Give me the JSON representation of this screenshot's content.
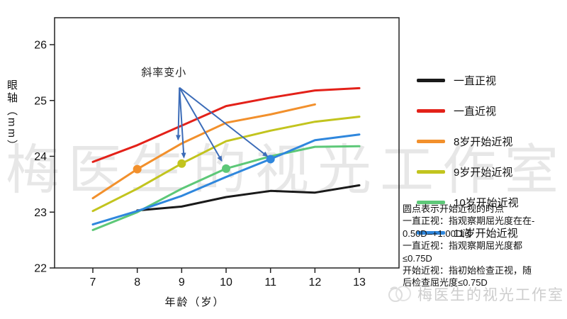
{
  "chart_data": {
    "type": "line",
    "title": "",
    "xlabel": "年龄（岁）",
    "ylabel": "眼轴（mm）",
    "x_ticks": [
      7,
      8,
      9,
      10,
      11,
      12,
      13
    ],
    "y_ticks": [
      22,
      23,
      24,
      25,
      26
    ],
    "xlim": [
      6.15,
      13.9
    ],
    "ylim": [
      22,
      26.5
    ],
    "grid": false,
    "legend_position": "right",
    "series": [
      {
        "name": "一直正视",
        "color": "#1a1a1a",
        "ages": [
          8,
          9,
          10,
          11,
          12,
          13
        ],
        "values": [
          23.03,
          23.1,
          23.27,
          23.38,
          23.35,
          23.48
        ]
      },
      {
        "name": "一直近视",
        "color": "#e32119",
        "ages": [
          7,
          8,
          9,
          10,
          11,
          12,
          13
        ],
        "values": [
          23.9,
          24.2,
          24.55,
          24.9,
          25.05,
          25.18,
          25.22
        ]
      },
      {
        "name": "8岁开始近视",
        "color": "#f2902c",
        "ages": [
          7,
          8,
          9,
          10,
          11,
          12
        ],
        "values": [
          23.25,
          23.77,
          24.23,
          24.6,
          24.75,
          24.93
        ],
        "onset_age": 8,
        "onset_value": 23.77
      },
      {
        "name": "9岁开始近视",
        "color": "#c2c41e",
        "ages": [
          7,
          8,
          9,
          10,
          11,
          12,
          13
        ],
        "values": [
          23.02,
          23.42,
          23.87,
          24.27,
          24.46,
          24.62,
          24.71
        ],
        "onset_age": 9,
        "onset_value": 23.87
      },
      {
        "name": "10岁开始近视",
        "color": "#5dc878",
        "ages": [
          7,
          8,
          9,
          10,
          11,
          12,
          13
        ],
        "values": [
          22.68,
          23.0,
          23.42,
          23.78,
          24.0,
          24.17,
          24.18
        ],
        "onset_age": 10,
        "onset_value": 23.78
      },
      {
        "name": "11岁开始近视",
        "color": "#2f87dd",
        "ages": [
          7,
          8,
          9,
          10,
          11,
          12,
          13
        ],
        "values": [
          22.78,
          23.02,
          23.29,
          23.63,
          23.95,
          24.29,
          24.39
        ],
        "onset_age": 11,
        "onset_value": 23.95
      }
    ],
    "annotation": {
      "text": "斜率变小",
      "color": "#3c6cb8",
      "text_pos": [
        8.6,
        25.44
      ],
      "origin": [
        8.95,
        25.23
      ],
      "targets": [
        [
          8.92,
          24.3
        ],
        [
          9.05,
          23.98
        ],
        [
          9.9,
          23.92
        ],
        [
          10.93,
          24.0
        ]
      ]
    }
  },
  "notes": {
    "lines": [
      "圆点表示开始近视的时点",
      "一直正视：指观察期屈光度在在-",
      "0.50D–+1.00D间",
      "一直近视：指观察期屈光度都",
      "≤0.75D",
      "开始近视：指初始检查正视，随",
      "后检查屈光度≤0.75D"
    ]
  },
  "watermark": {
    "text": "梅医生的视光工作室"
  },
  "footer_brand": {
    "text": "梅医生的视光工作室"
  }
}
